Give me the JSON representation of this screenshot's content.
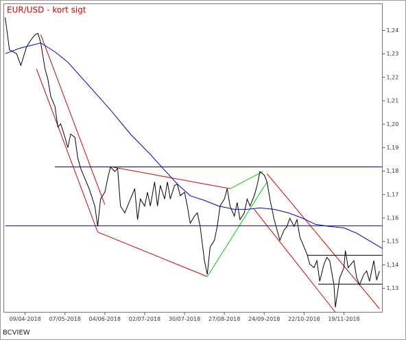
{
  "chart_data": {
    "type": "line",
    "title": "EUR/USD - kort sigt",
    "source": "BCVIEW",
    "xlim": [
      "25/03-2018",
      "16/12-2018"
    ],
    "xticks": [
      "09/04-2018",
      "07/05-2018",
      "04/06-2018",
      "02/07-2018",
      "30/07-2018",
      "27/08-2018",
      "24/09-2018",
      "22/10-2018",
      "19/11-2018"
    ],
    "ylim": [
      1.1198,
      1.2514
    ],
    "yticks": [
      {
        "value": 1.13,
        "label": "1,13"
      },
      {
        "value": 1.14,
        "label": "1,14"
      },
      {
        "value": 1.15,
        "label": "1,15"
      },
      {
        "value": 1.16,
        "label": "1,16"
      },
      {
        "value": 1.17,
        "label": "1,17"
      },
      {
        "value": 1.18,
        "label": "1,18"
      },
      {
        "value": 1.19,
        "label": "1,19"
      },
      {
        "value": 1.2,
        "label": "1,20"
      },
      {
        "value": 1.21,
        "label": "1,21"
      },
      {
        "value": 1.22,
        "label": "1,22"
      },
      {
        "value": 1.23,
        "label": "1,23"
      },
      {
        "value": 1.24,
        "label": "1,24"
      }
    ],
    "series": [
      {
        "color": "#000000",
        "x": [
          "26/03-2018",
          "29/03-2018",
          "03/04-2018",
          "06/04-2018",
          "10/04-2018",
          "13/04-2018",
          "16/04-2018",
          "18/04-2018",
          "20/04-2018",
          "23/04-2018",
          "25/04-2018",
          "27/04-2018",
          "30/04-2018",
          "02/05-2018",
          "04/05-2018",
          "07/05-2018",
          "09/05-2018",
          "11/05-2018",
          "14/05-2018",
          "16/05-2018",
          "18/05-2018",
          "21/05-2018",
          "24/05-2018",
          "28/05-2018",
          "30/05-2018",
          "01/06-2018",
          "04/06-2018",
          "06/06-2018",
          "08/06-2018",
          "11/06-2018",
          "13/06-2018",
          "15/06-2018",
          "18/06-2018",
          "20/06-2018",
          "22/06-2018",
          "25/06-2018",
          "27/06-2018",
          "29/06-2018",
          "02/07-2018",
          "04/07-2018",
          "06/07-2018",
          "09/07-2018",
          "11/07-2018",
          "13/07-2018",
          "16/07-2018",
          "18/07-2018",
          "20/07-2018",
          "23/07-2018",
          "25/07-2018",
          "27/07-2018",
          "30/07-2018",
          "01/08-2018",
          "03/08-2018",
          "06/08-2018",
          "08/08-2018",
          "10/08-2018",
          "13/08-2018",
          "15/08-2018",
          "17/08-2018",
          "20/08-2018",
          "22/08-2018",
          "24/08-2018",
          "27/08-2018",
          "29/08-2018",
          "31/08-2018",
          "03/09-2018",
          "05/09-2018",
          "07/09-2018",
          "10/09-2018",
          "12/09-2018",
          "14/09-2018",
          "17/09-2018",
          "19/09-2018",
          "21/09-2018",
          "24/09-2018",
          "26/09-2018",
          "28/09-2018",
          "01/10-2018",
          "03/10-2018",
          "05/10-2018",
          "08/10-2018",
          "10/10-2018",
          "12/10-2018",
          "15/10-2018",
          "17/10-2018",
          "19/10-2018",
          "22/10-2018",
          "24/10-2018",
          "26/10-2018",
          "29/10-2018",
          "31/10-2018",
          "02/11-2018",
          "05/11-2018",
          "07/11-2018",
          "09/11-2018",
          "12/11-2018",
          "13/11-2018",
          "15/11-2018",
          "16/11-2018",
          "19/11-2018",
          "20/11-2018",
          "22/11-2018",
          "26/11-2018",
          "28/11-2018",
          "30/11-2018",
          "03/12-2018",
          "05/12-2018",
          "07/12-2018",
          "10/12-2018",
          "12/12-2018",
          "14/12-2018"
        ],
        "values": [
          1.2456,
          1.2318,
          1.2301,
          1.2251,
          1.233,
          1.2359,
          1.2382,
          1.2388,
          1.2347,
          1.2236,
          1.2192,
          1.2119,
          1.2075,
          1.1988,
          1.2002,
          1.1944,
          1.19,
          1.1958,
          1.1944,
          1.1856,
          1.1812,
          1.1768,
          1.1725,
          1.1651,
          1.1564,
          1.1681,
          1.171,
          1.1768,
          1.1818,
          1.1798,
          1.1812,
          1.1651,
          1.1622,
          1.1651,
          1.1681,
          1.1725,
          1.1593,
          1.1681,
          1.1651,
          1.171,
          1.1651,
          1.1754,
          1.1651,
          1.1739,
          1.1681,
          1.1754,
          1.1681,
          1.1739,
          1.1745,
          1.1695,
          1.171,
          1.1651,
          1.1578,
          1.1608,
          1.1622,
          1.1564,
          1.1418,
          1.1359,
          1.1476,
          1.1505,
          1.1564,
          1.1651,
          1.1681,
          1.1725,
          1.1651,
          1.1608,
          1.1666,
          1.1593,
          1.1622,
          1.1681,
          1.1651,
          1.1695,
          1.1739,
          1.1798,
          1.1783,
          1.1754,
          1.1681,
          1.1593,
          1.1549,
          1.1505,
          1.1549,
          1.1564,
          1.1599,
          1.1564,
          1.1593,
          1.152,
          1.1476,
          1.1447,
          1.1403,
          1.1388,
          1.1418,
          1.133,
          1.1403,
          1.1432,
          1.1418,
          1.1315,
          1.1219,
          1.1301,
          1.1344,
          1.1388,
          1.1461,
          1.1388,
          1.1418,
          1.1344,
          1.1315,
          1.1359,
          1.1374,
          1.133,
          1.1418,
          1.1335,
          1.1374
        ]
      },
      {
        "color": "#0000cc",
        "x": [
          "26/03-2018",
          "05/04-2018",
          "20/04-2018",
          "30/04-2018",
          "09/05-2018",
          "24/05-2018",
          "08/06-2018",
          "22/06-2018",
          "06/07-2018",
          "16/07-2018",
          "25/07-2018",
          "03/08-2018",
          "13/08-2018",
          "23/08-2018",
          "03/09-2018",
          "12/09-2018",
          "21/09-2018",
          "01/10-2018",
          "11/10-2018",
          "21/10-2018",
          "30/10-2018",
          "09/11-2018",
          "19/11-2018",
          "28/11-2018",
          "08/12-2018",
          "16/12-2018"
        ],
        "values": [
          1.2301,
          1.2324,
          1.2347,
          1.2309,
          1.2265,
          1.2163,
          1.2061,
          1.1958,
          1.1871,
          1.1804,
          1.1745,
          1.1695,
          1.1675,
          1.1651,
          1.1637,
          1.1637,
          1.1643,
          1.1637,
          1.1622,
          1.1599,
          1.1573,
          1.1564,
          1.1558,
          1.1535,
          1.1499,
          1.147
        ]
      }
    ],
    "trendlines": [
      {
        "color": "#d00000",
        "x": [
          "17/04-2018",
          "30/05-2018"
        ],
        "values": [
          1.2236,
          1.154
        ]
      },
      {
        "color": "#d00000",
        "x": [
          "20/04-2018",
          "04/06-2018"
        ],
        "values": [
          1.2382,
          1.1657
        ]
      },
      {
        "color": "#d00000",
        "x": [
          "30/05-2018",
          "15/08-2018"
        ],
        "values": [
          1.154,
          1.135
        ]
      },
      {
        "color": "#d00000",
        "x": [
          "09/06-2018",
          "31/08-2018"
        ],
        "values": [
          1.1818,
          1.1725
        ]
      },
      {
        "color": "#d00000",
        "x": [
          "26/09-2018",
          "14/12-2018"
        ],
        "values": [
          1.1789,
          1.1213
        ]
      },
      {
        "color": "#d00000",
        "x": [
          "17/09-2018",
          "13/11-2018"
        ],
        "values": [
          1.1637,
          1.1198
        ]
      },
      {
        "color": "#00cc00",
        "x": [
          "15/08-2018",
          "26/09-2018"
        ],
        "values": [
          1.135,
          1.1754
        ]
      },
      {
        "color": "#00cc00",
        "x": [
          "31/08-2018",
          "23/09-2018"
        ],
        "values": [
          1.1725,
          1.1798
        ]
      },
      {
        "color": "#0000cc",
        "x": [
          "30/04-2018",
          "16/12-2018"
        ],
        "values": [
          1.1818,
          1.1818
        ]
      },
      {
        "color": "#0000cc",
        "x": [
          "26/03-2018",
          "16/12-2018"
        ],
        "values": [
          1.1567,
          1.1567
        ]
      },
      {
        "color": "#000000",
        "x": [
          "24/10-2018",
          "16/12-2018"
        ],
        "values": [
          1.1441,
          1.1441
        ]
      },
      {
        "color": "#000000",
        "x": [
          "01/11-2018",
          "16/12-2018"
        ],
        "values": [
          1.1318,
          1.1318
        ]
      }
    ]
  }
}
